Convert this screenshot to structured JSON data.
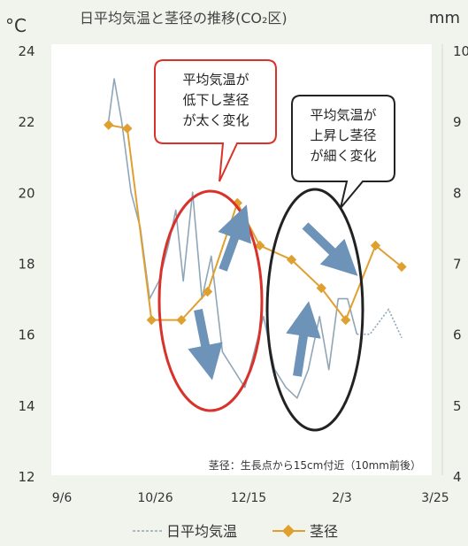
{
  "chart_data": {
    "type": "line",
    "title": "日平均気温と茎径の推移(CO₂区)",
    "left_unit": "°C",
    "right_unit": "mm",
    "ylim_left": [
      12,
      24
    ],
    "ylim_right": [
      4,
      10
    ],
    "y_ticks_left": [
      "24",
      "22",
      "20",
      "18",
      "16",
      "14",
      "12"
    ],
    "y_ticks_right": [
      "10",
      "9",
      "8",
      "7",
      "6",
      "5",
      "4"
    ],
    "x_ticks": [
      "9/6",
      "10/26",
      "12/15",
      "2/3",
      "3/25"
    ],
    "grid": false,
    "legend_position": "bottom",
    "series": [
      {
        "name": "日平均気温",
        "axis": "left",
        "color": "#8fa6b8",
        "x_days": [
          25,
          28,
          32,
          37,
          42,
          47,
          52,
          57,
          61,
          65,
          70,
          75,
          80,
          86,
          92,
          98,
          103,
          108,
          114,
          120,
          126,
          132,
          138,
          143,
          148,
          153,
          158,
          165,
          175,
          182
        ],
        "values": [
          22.0,
          23.2,
          22.0,
          20.0,
          19.0,
          17.0,
          17.5,
          18.5,
          19.5,
          17.5,
          20.0,
          17.0,
          18.2,
          15.5,
          15.0,
          14.5,
          15.5,
          16.5,
          15.0,
          14.5,
          14.2,
          15.0,
          16.5,
          15.0,
          17.0,
          17.0,
          16.0,
          16.0,
          16.7,
          15.9
        ],
        "dashed_from_index": 26
      },
      {
        "name": "茎径",
        "axis": "right",
        "color": "#e0a030",
        "x_days": [
          25,
          35,
          48,
          64,
          78,
          94,
          106,
          123,
          139,
          152,
          168,
          182
        ],
        "values": [
          8.95,
          8.9,
          6.2,
          6.2,
          6.6,
          7.85,
          7.25,
          7.05,
          6.65,
          6.2,
          7.25,
          6.95
        ]
      }
    ],
    "annotations": [
      {
        "lines": [
          "平均気温が",
          "低下し茎径",
          "が太く変化"
        ]
      },
      {
        "lines": [
          "平均気温が",
          "上昇し茎径",
          "が細く変化"
        ]
      },
      {
        "text": "茎径：生長点から15cm付近（10mm前後）"
      }
    ]
  }
}
